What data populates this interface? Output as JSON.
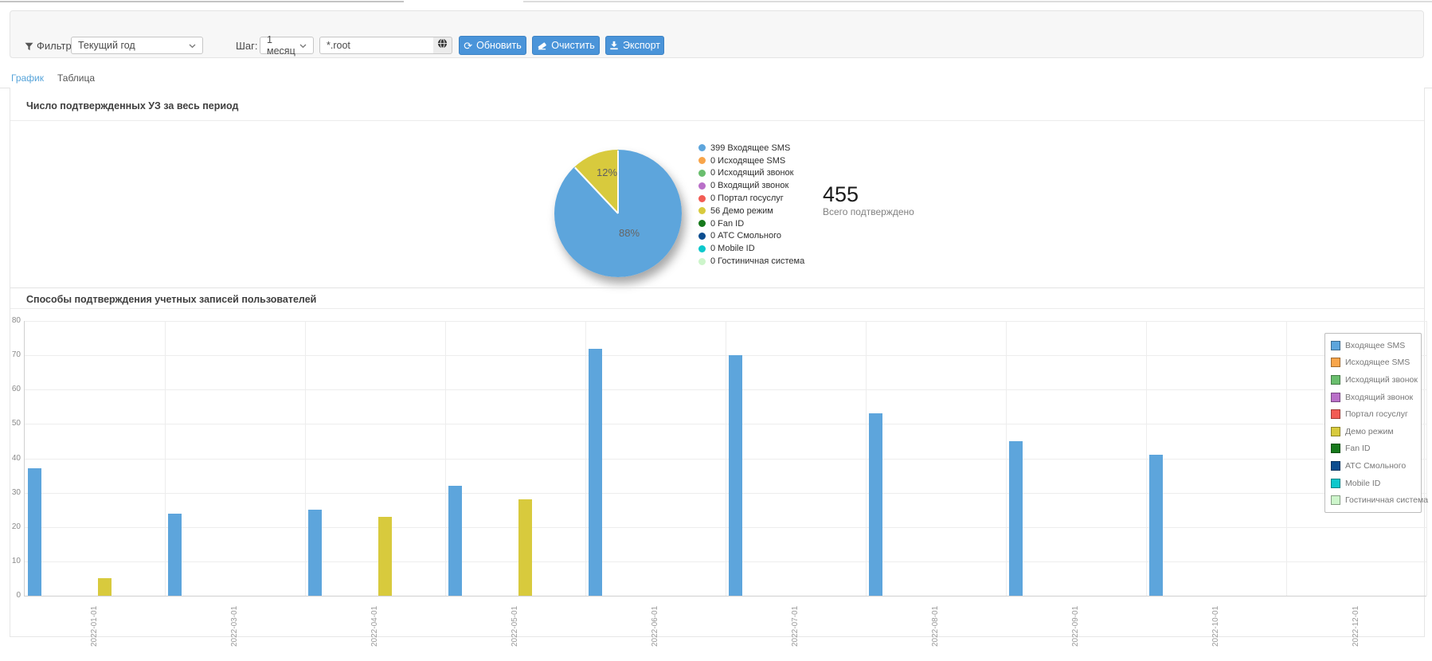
{
  "toolbar": {
    "filter_label": "Фильтр:",
    "filter_value": "Текущий год",
    "step_label": "Шаг:",
    "step_value": "1 месяц",
    "search_value": "*.root",
    "refresh_label": "Обновить",
    "clear_label": "Очистить",
    "export_label": "Экспорт",
    "refresh_glyph": "⟳"
  },
  "icons": {
    "filter": "funnel",
    "select_chevron": "chevron-down",
    "globe": "globe",
    "refresh": "refresh-arrow",
    "clear": "eraser",
    "export": "download"
  },
  "tabs": {
    "graph": "График",
    "table": "Таблица"
  },
  "pie_section": {
    "title": "Число подтвержденных УЗ за весь период",
    "total_value": "455",
    "total_label": "Всего подтверждено"
  },
  "bar_section": {
    "title": "Способы подтверждения учетных записей пользователей"
  },
  "chart_data": [
    {
      "type": "pie",
      "title": "Число подтвержденных УЗ за весь период",
      "slices": [
        {
          "label": "Входящее SMS",
          "value": 399,
          "pct": 88,
          "pct_label": "88%",
          "color": "#5da5dc"
        },
        {
          "label": "Демо режим",
          "value": 56,
          "pct": 12,
          "pct_label": "12%",
          "color": "#d8ca3d"
        }
      ],
      "legend": [
        {
          "value": 399,
          "label": "Входящее SMS",
          "color": "#5da5dc"
        },
        {
          "value": 0,
          "label": "Исходящее SMS",
          "color": "#f8a54a"
        },
        {
          "value": 0,
          "label": "Исходящий звонок",
          "color": "#6abe6e"
        },
        {
          "value": 0,
          "label": "Входящий звонок",
          "color": "#b96fc8"
        },
        {
          "value": 0,
          "label": "Портал госуслуг",
          "color": "#f25c54"
        },
        {
          "value": 56,
          "label": "Демо режим",
          "color": "#d8ca3d"
        },
        {
          "value": 0,
          "label": "Fan ID",
          "color": "#17791c"
        },
        {
          "value": 0,
          "label": "АТС Смольного",
          "color": "#0c4d8f"
        },
        {
          "value": 0,
          "label": "Mobile ID",
          "color": "#0cc8cc"
        },
        {
          "value": 0,
          "label": "Гостиничная система",
          "color": "#cdf5cb"
        }
      ],
      "total": 455,
      "total_label": "Всего подтверждено",
      "legend_position": "right"
    },
    {
      "type": "bar",
      "title": "Способы подтверждения учетных записей пользователей",
      "categories": [
        "2022-01-01",
        "2022-03-01",
        "2022-04-01",
        "2022-05-01",
        "2022-06-01",
        "2022-07-01",
        "2022-08-01",
        "2022-09-01",
        "2022-10-01",
        "2022-12-01"
      ],
      "series": [
        {
          "name": "Входящее SMS",
          "color": "#5da5dc",
          "values": [
            37,
            24,
            25,
            32,
            72,
            70,
            53,
            45,
            41,
            0
          ]
        },
        {
          "name": "Исходящее SMS",
          "color": "#f8a54a",
          "values": [
            0,
            0,
            0,
            0,
            0,
            0,
            0,
            0,
            0,
            0
          ]
        },
        {
          "name": "Исходящий звонок",
          "color": "#6abe6e",
          "values": [
            0,
            0,
            0,
            0,
            0,
            0,
            0,
            0,
            0,
            0
          ]
        },
        {
          "name": "Входящий звонок",
          "color": "#b96fc8",
          "values": [
            0,
            0,
            0,
            0,
            0,
            0,
            0,
            0,
            0,
            0
          ]
        },
        {
          "name": "Портал госуслуг",
          "color": "#f25c54",
          "values": [
            0,
            0,
            0,
            0,
            0,
            0,
            0,
            0,
            0,
            0
          ]
        },
        {
          "name": "Демо режим",
          "color": "#d8ca3d",
          "values": [
            5,
            0,
            23,
            28,
            0,
            0,
            0,
            0,
            0,
            0
          ]
        },
        {
          "name": "Fan ID",
          "color": "#17791c",
          "values": [
            0,
            0,
            0,
            0,
            0,
            0,
            0,
            0,
            0,
            0
          ]
        },
        {
          "name": "АТС Смольного",
          "color": "#0c4d8f",
          "values": [
            0,
            0,
            0,
            0,
            0,
            0,
            0,
            0,
            0,
            0
          ]
        },
        {
          "name": "Mobile ID",
          "color": "#0cc8cc",
          "values": [
            0,
            0,
            0,
            0,
            0,
            0,
            0,
            0,
            0,
            0
          ]
        },
        {
          "name": "Гостиничная система",
          "color": "#cdf5cb",
          "values": [
            0,
            0,
            0,
            0,
            0,
            0,
            0,
            0,
            0,
            0
          ]
        }
      ],
      "ylim": [
        0,
        80
      ],
      "ytick_step": 10,
      "y_ticks": [
        0,
        10,
        20,
        30,
        40,
        50,
        60,
        70,
        80
      ],
      "grid": true,
      "legend_position": "right"
    }
  ]
}
